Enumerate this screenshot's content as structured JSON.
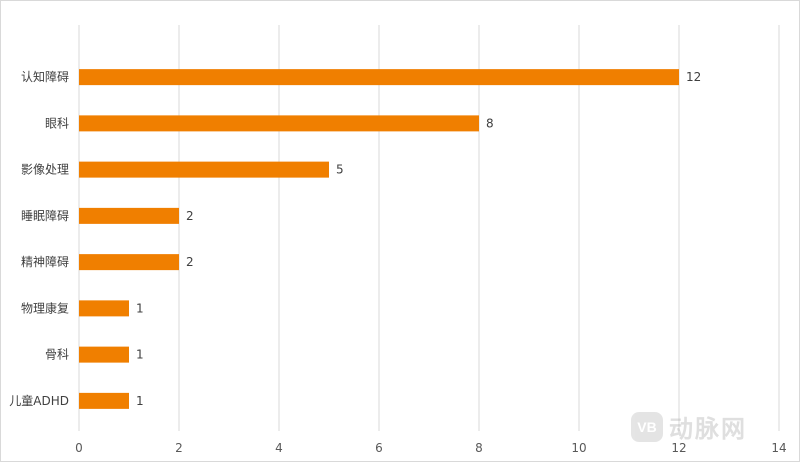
{
  "chart_data": {
    "type": "bar",
    "orientation": "horizontal",
    "categories": [
      "认知障碍",
      "眼科",
      "影像处理",
      "睡眠障碍",
      "精神障碍",
      "物理康复",
      "骨科",
      "儿童ADHD"
    ],
    "values": [
      12,
      8,
      5,
      2,
      2,
      1,
      1,
      1
    ],
    "xlim": [
      0,
      14
    ],
    "xticks": [
      0,
      2,
      4,
      6,
      8,
      10,
      12,
      14
    ],
    "grid": true,
    "legend": "none",
    "bar_color": "#F07F00",
    "grid_color": "#D9D9D9"
  },
  "watermark": {
    "logo_text": "VB",
    "text": "动脉网"
  }
}
